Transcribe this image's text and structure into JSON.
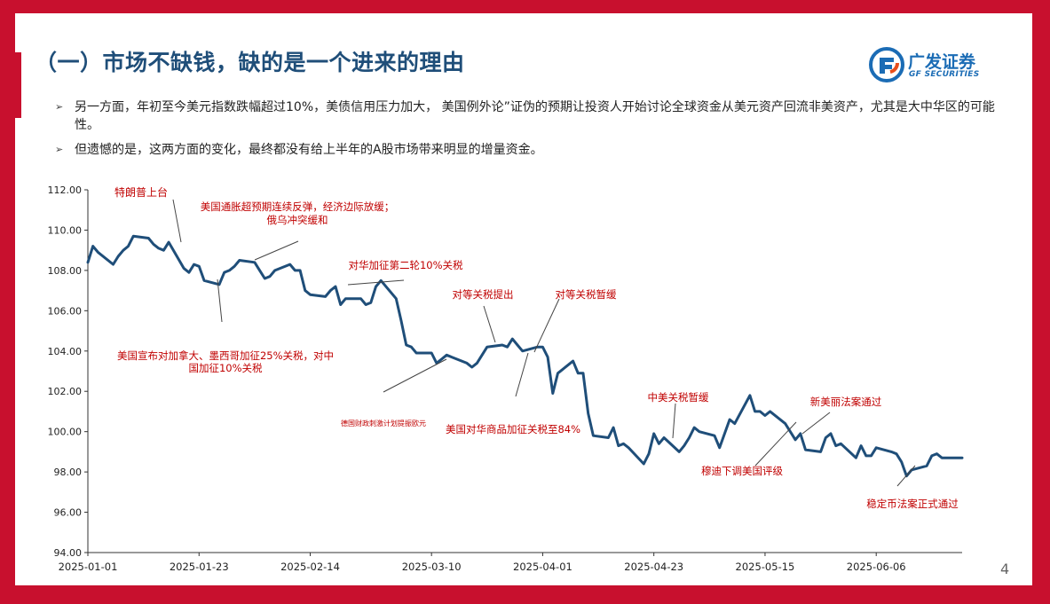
{
  "slide": {
    "title": "（一）市场不缺钱，缺的是一个进来的理由",
    "logo": {
      "name": "广发证券",
      "sub": "GF SECURITIES",
      "icon": "gf-logo-icon"
    },
    "bullets": [
      "另一方面，年初至今美元指数跌幅超过10%，美债信用压力加大， 美国例外论”证伪的预期让投资人开始讨论全球资金从美元资产回流非美资产，尤其是大中华区的可能性。",
      "但遗憾的是，这两方面的变化，最终都没有给上半年的A股市场带来明显的增量资金。"
    ],
    "bullet_icon": "arrow-bullet-icon",
    "page_number": "4"
  },
  "colors": {
    "background": "#c8102e",
    "title": "#1f4e79",
    "series": "#1f4e79",
    "annotation": "#c00000",
    "axis": "#333333"
  },
  "chart_data": {
    "type": "line",
    "title": "",
    "xlabel": "",
    "ylabel": "",
    "ylim": [
      94,
      112
    ],
    "yticks": [
      94,
      96,
      98,
      100,
      102,
      104,
      106,
      108,
      110,
      112
    ],
    "ytick_labels": [
      "94.00",
      "96.00",
      "98.00",
      "100.00",
      "102.00",
      "104.00",
      "106.00",
      "108.00",
      "110.00",
      "112.00"
    ],
    "xlim": [
      "2025-01-01",
      "2025-06-23"
    ],
    "xtick_labels": [
      "2025-01-01",
      "2025-01-23",
      "2025-02-14",
      "2025-03-10",
      "2025-04-01",
      "2025-04-23",
      "2025-05-15",
      "2025-06-06"
    ],
    "grid": false,
    "series": [
      {
        "x": [
          "2025-01-01",
          "2025-01-02",
          "2025-01-03",
          "2025-01-06",
          "2025-01-07",
          "2025-01-08",
          "2025-01-09",
          "2025-01-10",
          "2025-01-13",
          "2025-01-14",
          "2025-01-15",
          "2025-01-16",
          "2025-01-17",
          "2025-01-20",
          "2025-01-21",
          "2025-01-22",
          "2025-01-23",
          "2025-01-24",
          "2025-01-27",
          "2025-01-28",
          "2025-01-29",
          "2025-01-30",
          "2025-01-31",
          "2025-02-03",
          "2025-02-04",
          "2025-02-05",
          "2025-02-06",
          "2025-02-07",
          "2025-02-10",
          "2025-02-11",
          "2025-02-12",
          "2025-02-13",
          "2025-02-14",
          "2025-02-17",
          "2025-02-18",
          "2025-02-19",
          "2025-02-20",
          "2025-02-21",
          "2025-02-24",
          "2025-02-25",
          "2025-02-26",
          "2025-02-27",
          "2025-02-28",
          "2025-03-03",
          "2025-03-04",
          "2025-03-05",
          "2025-03-06",
          "2025-03-07",
          "2025-03-10",
          "2025-03-11",
          "2025-03-12",
          "2025-03-13",
          "2025-03-14",
          "2025-03-17",
          "2025-03-18",
          "2025-03-19",
          "2025-03-20",
          "2025-03-21",
          "2025-03-24",
          "2025-03-25",
          "2025-03-26",
          "2025-03-27",
          "2025-03-28",
          "2025-03-31",
          "2025-04-01",
          "2025-04-02",
          "2025-04-03",
          "2025-04-04",
          "2025-04-07",
          "2025-04-08",
          "2025-04-09",
          "2025-04-10",
          "2025-04-11",
          "2025-04-14",
          "2025-04-15",
          "2025-04-16",
          "2025-04-17",
          "2025-04-18",
          "2025-04-21",
          "2025-04-22",
          "2025-04-23",
          "2025-04-24",
          "2025-04-25",
          "2025-04-28",
          "2025-04-29",
          "2025-04-30",
          "2025-05-01",
          "2025-05-02",
          "2025-05-05",
          "2025-05-06",
          "2025-05-07",
          "2025-05-08",
          "2025-05-09",
          "2025-05-12",
          "2025-05-13",
          "2025-05-14",
          "2025-05-15",
          "2025-05-16",
          "2025-05-19",
          "2025-05-20",
          "2025-05-21",
          "2025-05-22",
          "2025-05-23",
          "2025-05-26",
          "2025-05-27",
          "2025-05-28",
          "2025-05-29",
          "2025-05-30",
          "2025-06-02",
          "2025-06-03",
          "2025-06-04",
          "2025-06-05",
          "2025-06-06",
          "2025-06-09",
          "2025-06-10",
          "2025-06-11",
          "2025-06-12",
          "2025-06-13",
          "2025-06-16",
          "2025-06-17",
          "2025-06-18",
          "2025-06-19",
          "2025-06-20",
          "2025-06-23"
        ],
        "values": [
          108.4,
          109.2,
          108.9,
          108.3,
          108.7,
          109.0,
          109.2,
          109.7,
          109.6,
          109.3,
          109.1,
          109.0,
          109.4,
          108.1,
          107.9,
          108.3,
          108.2,
          107.5,
          107.3,
          107.9,
          108.0,
          108.2,
          108.5,
          108.4,
          108.0,
          107.6,
          107.7,
          108.0,
          108.3,
          108.0,
          108.0,
          107.0,
          106.8,
          106.7,
          107.0,
          107.2,
          106.3,
          106.6,
          106.6,
          106.3,
          106.4,
          107.2,
          107.5,
          106.6,
          105.5,
          104.3,
          104.2,
          103.9,
          103.9,
          103.4,
          103.6,
          103.8,
          103.7,
          103.4,
          103.2,
          103.4,
          103.8,
          104.2,
          104.3,
          104.2,
          104.6,
          104.3,
          104.0,
          104.2,
          104.2,
          103.7,
          101.9,
          102.9,
          103.5,
          102.9,
          102.9,
          100.9,
          99.8,
          99.7,
          100.2,
          99.3,
          99.4,
          99.2,
          98.4,
          98.9,
          99.9,
          99.4,
          99.7,
          99.0,
          99.3,
          99.7,
          100.2,
          100.0,
          99.8,
          99.2,
          99.9,
          100.6,
          100.4,
          101.8,
          101.0,
          101.0,
          100.8,
          101.0,
          100.4,
          100.0,
          99.6,
          99.9,
          99.1,
          99.0,
          99.7,
          99.9,
          99.3,
          99.4,
          98.7,
          99.3,
          98.8,
          98.8,
          99.2,
          99.0,
          98.9,
          98.5,
          97.8,
          98.1,
          98.3,
          98.8,
          98.9,
          98.7,
          98.7,
          98.7
        ]
      }
    ],
    "annotations": [
      {
        "text": "特朗普上台",
        "date": "2025-01-17"
      },
      {
        "text": "美国通胀超预期连续反弹，经济边际放缓；",
        "date": "2025-01-31"
      },
      {
        "text": "俄乌冲突缓和",
        "date": "2025-01-31"
      },
      {
        "text": "美国宣布对加拿大、墨西哥加征25%关税，对中",
        "date": "2025-01-27"
      },
      {
        "text": "国加征10%关税",
        "date": "2025-01-27"
      },
      {
        "text": "对华加征第二轮10%关税",
        "date": "2025-02-28"
      },
      {
        "text": "德国财政刺激计划提振欧元",
        "date": "2025-03-12"
      },
      {
        "text": "对等关税提出",
        "date": "2025-03-21"
      },
      {
        "text": "美国对华商品加征关税至84%",
        "date": "2025-04-07"
      },
      {
        "text": "对等关税暂缓",
        "date": "2025-04-09"
      },
      {
        "text": "中美关税暂缓",
        "date": "2025-04-25"
      },
      {
        "text": "穆迪下调美国评级",
        "date": "2025-05-19"
      },
      {
        "text": "新美丽法案通过",
        "date": "2025-05-22"
      },
      {
        "text": "稳定币法案正式通过",
        "date": "2025-06-13"
      }
    ]
  }
}
